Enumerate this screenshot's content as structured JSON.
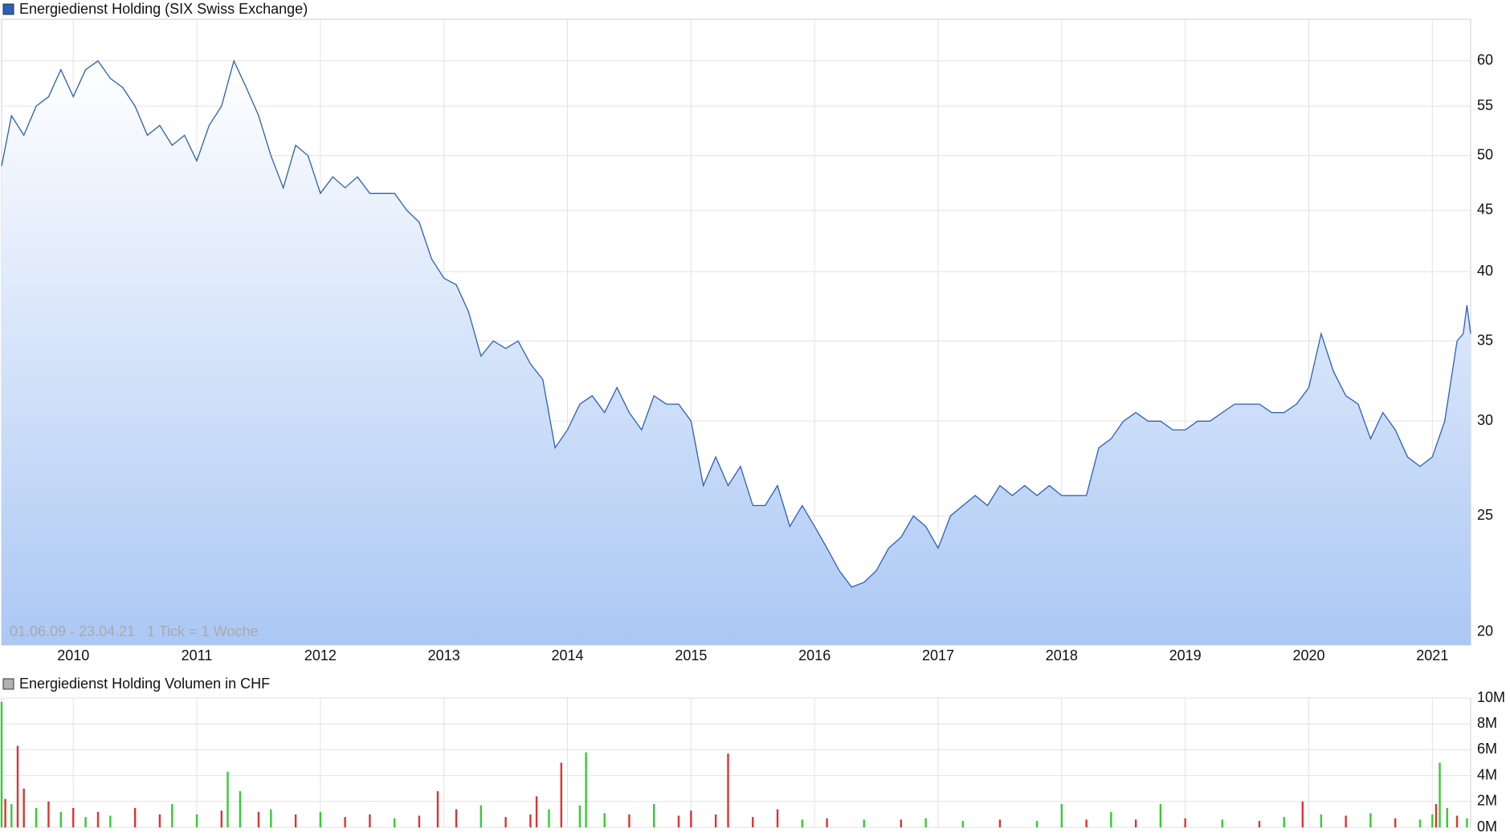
{
  "chart_data": [
    {
      "type": "line",
      "series": [
        {
          "name": "Energiedienst Holding (SIX Swiss Exchange)",
          "color": "#2a5fba",
          "values": [
            49,
            54,
            52,
            55,
            56,
            59,
            56,
            59,
            60,
            58,
            57,
            55,
            52,
            53,
            51,
            52,
            49.5,
            53,
            55,
            60,
            57,
            54,
            50,
            47,
            51,
            50,
            46.5,
            48,
            47,
            48,
            46.5,
            46.5,
            46.5,
            45,
            44,
            41,
            39.5,
            39,
            37,
            34,
            35,
            34.5,
            35,
            33.5,
            32.5,
            28.5,
            29.5,
            31,
            31.5,
            30.5,
            32,
            30.5,
            29.5,
            31.5,
            31,
            31,
            30,
            26.5,
            28,
            26.5,
            27.5,
            25.5,
            25.5,
            26.5,
            24.5,
            25.5,
            24.5,
            23.5,
            22.5,
            21.8,
            22,
            22.5,
            23.5,
            24,
            25,
            24.5,
            23.5,
            25,
            25.5,
            26,
            25.5,
            26.5,
            26,
            26.5,
            26,
            26.5,
            26,
            26,
            26,
            28.5,
            29,
            30,
            30.5,
            30,
            30,
            29.5,
            29.5,
            30,
            30,
            30.5,
            31,
            31,
            31,
            30.5,
            30.5,
            31,
            32,
            35.5,
            33,
            31.5,
            31,
            29,
            30.5,
            29.5,
            28,
            27.5,
            28,
            30,
            35,
            35.5,
            37.5,
            35.5
          ]
        }
      ],
      "x": [
        2009.42,
        2009.5,
        2009.6,
        2009.7,
        2009.8,
        2009.9,
        2010.0,
        2010.1,
        2010.2,
        2010.3,
        2010.4,
        2010.5,
        2010.6,
        2010.7,
        2010.8,
        2010.9,
        2011.0,
        2011.1,
        2011.2,
        2011.3,
        2011.4,
        2011.5,
        2011.6,
        2011.7,
        2011.8,
        2011.9,
        2012.0,
        2012.1,
        2012.2,
        2012.3,
        2012.4,
        2012.5,
        2012.6,
        2012.7,
        2012.8,
        2012.9,
        2013.0,
        2013.1,
        2013.2,
        2013.3,
        2013.4,
        2013.5,
        2013.6,
        2013.7,
        2013.8,
        2013.9,
        2014.0,
        2014.1,
        2014.2,
        2014.3,
        2014.4,
        2014.5,
        2014.6,
        2014.7,
        2014.8,
        2014.9,
        2015.0,
        2015.1,
        2015.2,
        2015.3,
        2015.4,
        2015.5,
        2015.6,
        2015.7,
        2015.8,
        2015.9,
        2016.0,
        2016.1,
        2016.2,
        2016.3,
        2016.4,
        2016.5,
        2016.6,
        2016.7,
        2016.8,
        2016.9,
        2017.0,
        2017.1,
        2017.2,
        2017.3,
        2017.4,
        2017.5,
        2017.6,
        2017.7,
        2017.8,
        2017.9,
        2018.0,
        2018.1,
        2018.2,
        2018.3,
        2018.4,
        2018.5,
        2018.6,
        2018.7,
        2018.8,
        2018.9,
        2019.0,
        2019.1,
        2019.2,
        2019.3,
        2019.4,
        2019.5,
        2019.6,
        2019.7,
        2019.8,
        2019.9,
        2020.0,
        2020.1,
        2020.2,
        2020.3,
        2020.4,
        2020.5,
        2020.6,
        2020.7,
        2020.8,
        2020.9,
        2021.0,
        2021.1,
        2021.2,
        2021.25,
        2021.28,
        2021.31
      ],
      "xlim": [
        2009.42,
        2021.31
      ],
      "xticks": [
        2010,
        2011,
        2012,
        2013,
        2014,
        2015,
        2016,
        2017,
        2018,
        2019,
        2020,
        2021
      ],
      "ylim": [
        19.5,
        65
      ],
      "yticks": [
        20,
        25,
        30,
        35,
        40,
        45,
        50,
        55,
        60
      ],
      "log_scale": true,
      "grid": true,
      "annotation": "01.06.09 - 23.04.21   1 Tick = 1 Woche"
    },
    {
      "type": "bar",
      "series": [
        {
          "name": "Energiedienst Holding Volumen in CHF",
          "color": "#b0b0b0",
          "values": [
            9.7,
            2.2,
            1.8,
            6.3,
            3,
            1.5,
            2,
            1.2,
            1.5,
            0.8,
            1.2,
            0.9,
            1.5,
            1.0,
            1.8,
            1.0,
            1.3,
            4.3,
            2.8,
            1.2,
            1.4,
            1.0,
            1.2,
            0.8,
            1.0,
            0.7,
            0.9,
            2.8,
            1.4,
            1.7,
            0.8,
            1.0,
            2.4,
            1.4,
            5.0,
            1.7,
            5.8,
            1.1,
            1.0,
            1.8,
            0.9,
            1.3,
            1.0,
            5.7,
            0.8,
            1.4,
            0.6,
            0.7,
            0.6,
            0.6,
            0.7,
            0.5,
            0.6,
            0.5,
            1.8,
            0.6,
            1.2,
            0.6,
            1.8,
            0.7,
            0.6,
            0.5,
            0.8,
            2.0,
            1.0,
            0.9,
            1.1,
            0.7,
            0.6,
            1.0,
            1.8,
            5.0,
            1.5,
            0.9,
            0.7
          ],
          "bar_colors": [
            "#33cc33",
            "#dd3333",
            "#33cc33",
            "#dd3333",
            "#dd3333",
            "#33cc33",
            "#dd3333",
            "#33cc33",
            "#dd3333",
            "#33cc33",
            "#dd3333",
            "#33cc33",
            "#dd3333",
            "#dd3333",
            "#33cc33",
            "#33cc33",
            "#dd3333",
            "#33cc33",
            "#33cc33",
            "#dd3333",
            "#33cc33",
            "#dd3333",
            "#33cc33",
            "#dd3333",
            "#dd3333",
            "#33cc33",
            "#dd3333",
            "#dd3333",
            "#dd3333",
            "#33cc33",
            "#dd3333",
            "#dd3333",
            "#dd3333",
            "#33cc33",
            "#dd3333",
            "#33cc33",
            "#33cc33",
            "#33cc33",
            "#dd3333",
            "#33cc33",
            "#dd3333",
            "#dd3333",
            "#dd3333",
            "#dd3333",
            "#dd3333",
            "#dd3333",
            "#33cc33",
            "#dd3333",
            "#33cc33",
            "#dd3333",
            "#33cc33",
            "#33cc33",
            "#dd3333",
            "#33cc33",
            "#33cc33",
            "#dd3333",
            "#33cc33",
            "#dd3333",
            "#33cc33",
            "#dd3333",
            "#33cc33",
            "#dd3333",
            "#33cc33",
            "#dd3333",
            "#33cc33",
            "#dd3333",
            "#33cc33",
            "#dd3333",
            "#33cc33",
            "#33cc33",
            "#dd3333",
            "#33cc33",
            "#33cc33",
            "#dd3333",
            "#33cc33"
          ]
        }
      ],
      "x": [
        2009.42,
        2009.45,
        2009.5,
        2009.55,
        2009.6,
        2009.7,
        2009.8,
        2009.9,
        2010.0,
        2010.1,
        2010.2,
        2010.3,
        2010.5,
        2010.7,
        2010.8,
        2011.0,
        2011.2,
        2011.25,
        2011.35,
        2011.5,
        2011.6,
        2011.8,
        2012.0,
        2012.2,
        2012.4,
        2012.6,
        2012.8,
        2012.95,
        2013.1,
        2013.3,
        2013.5,
        2013.7,
        2013.75,
        2013.85,
        2013.95,
        2014.1,
        2014.15,
        2014.3,
        2014.5,
        2014.7,
        2014.9,
        2015.0,
        2015.2,
        2015.3,
        2015.5,
        2015.7,
        2015.9,
        2016.1,
        2016.4,
        2016.7,
        2016.9,
        2017.2,
        2017.5,
        2017.8,
        2018.0,
        2018.2,
        2018.4,
        2018.6,
        2018.8,
        2019.0,
        2019.3,
        2019.6,
        2019.8,
        2019.95,
        2020.1,
        2020.3,
        2020.5,
        2020.7,
        2020.9,
        2021.0,
        2021.03,
        2021.06,
        2021.12,
        2021.2,
        2021.28
      ],
      "xlim": [
        2009.42,
        2021.31
      ],
      "ylim": [
        0,
        10
      ],
      "yticks": [
        {
          "value": 0,
          "label": "0M"
        },
        {
          "value": 2,
          "label": "2M"
        },
        {
          "value": 4,
          "label": "4M"
        },
        {
          "value": 6,
          "label": "6M"
        },
        {
          "value": 8,
          "label": "8M"
        },
        {
          "value": 10,
          "label": "10M"
        }
      ],
      "grid": true
    }
  ]
}
